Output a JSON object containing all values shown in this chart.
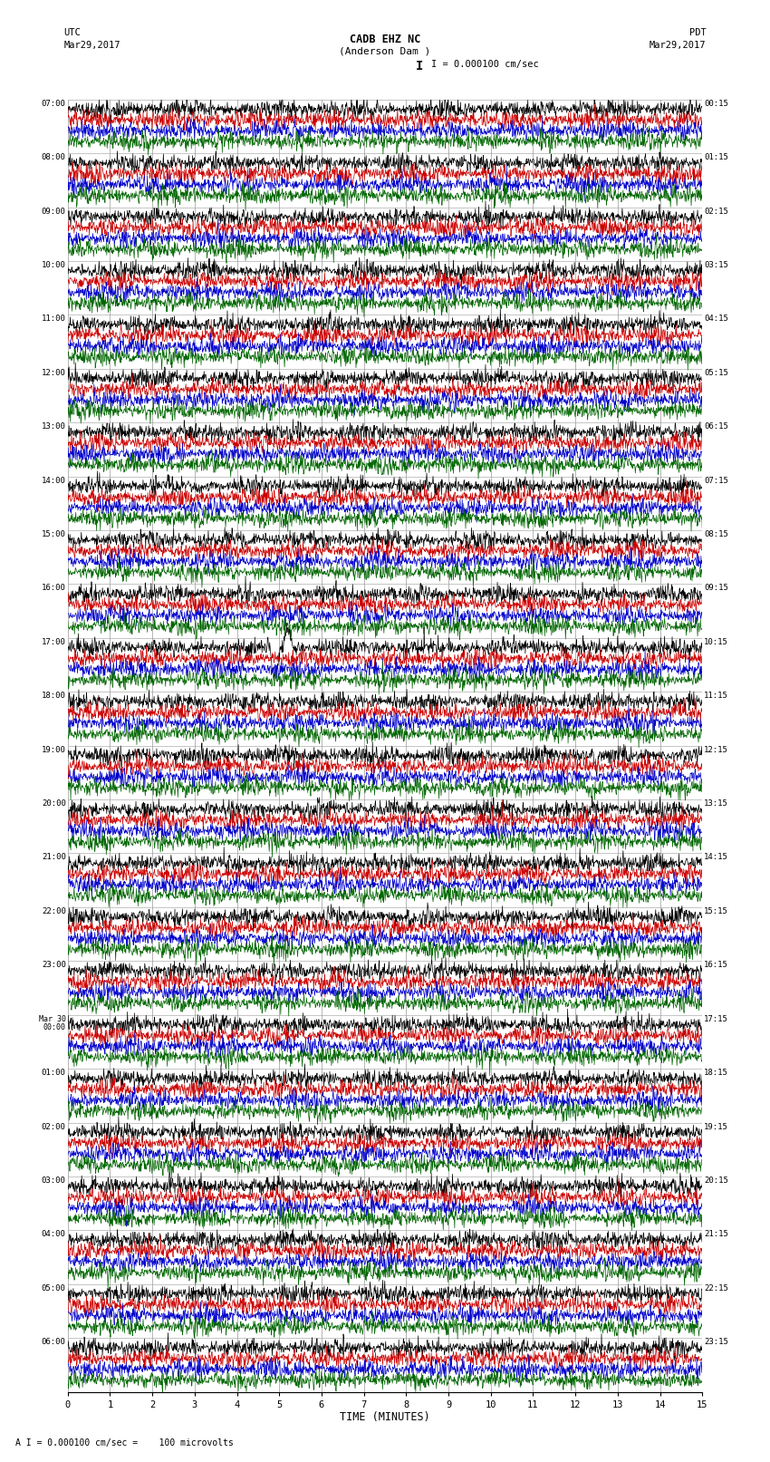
{
  "title_line1": "CADB EHZ NC",
  "title_line2": "(Anderson Dam )",
  "scale_text": "I = 0.000100 cm/sec",
  "footer_text": "A I = 0.000100 cm/sec =    100 microvolts",
  "utc_label": "UTC",
  "utc_date": "Mar29,2017",
  "pdt_label": "PDT",
  "pdt_date": "Mar29,2017",
  "xlabel": "TIME (MINUTES)",
  "x_min": 0,
  "x_max": 15,
  "background_color": "#ffffff",
  "trace_colors": [
    "#000000",
    "#cc0000",
    "#0000cc",
    "#006600"
  ],
  "grid_color": "#999999",
  "left_labels_utc": [
    "07:00",
    "08:00",
    "09:00",
    "10:00",
    "11:00",
    "12:00",
    "13:00",
    "14:00",
    "15:00",
    "16:00",
    "17:00",
    "18:00",
    "19:00",
    "20:00",
    "21:00",
    "22:00",
    "23:00",
    "Mar 30\n00:00",
    "01:00",
    "02:00",
    "03:00",
    "04:00",
    "05:00",
    "06:00"
  ],
  "right_labels_pdt": [
    "00:15",
    "01:15",
    "02:15",
    "03:15",
    "04:15",
    "05:15",
    "06:15",
    "07:15",
    "08:15",
    "09:15",
    "10:15",
    "11:15",
    "12:15",
    "13:15",
    "14:15",
    "15:15",
    "16:15",
    "17:15",
    "18:15",
    "19:15",
    "20:15",
    "21:15",
    "22:15",
    "23:15"
  ],
  "num_rows": 24,
  "traces_per_row": 4,
  "spike_row_17": 10,
  "spike_col_17": 4.9,
  "spike_row_19": 12,
  "spike_col_19": 12.5,
  "spike_row_03": 20,
  "spike_col_03": 1.4
}
